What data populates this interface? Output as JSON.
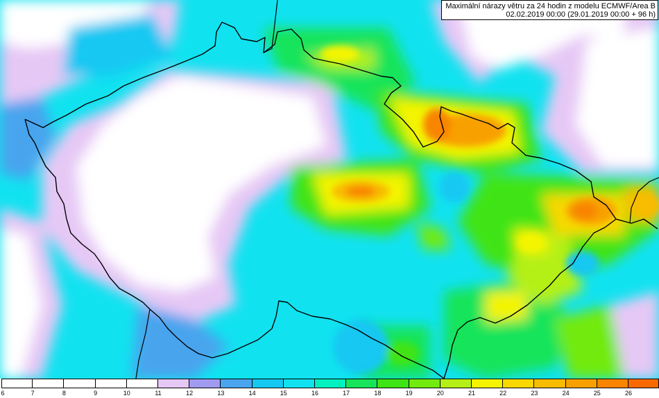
{
  "map": {
    "title_line1": "Maximální nárazy větru za 24 hodin z modelu ECMWF/Area B",
    "title_line2": "02.02.2019 00:00 (29.01.2019 00:00 + 96 h)"
  },
  "legend": {
    "levels": [
      {
        "value": "6",
        "color": "#ffffff"
      },
      {
        "value": "7",
        "color": "#ffffff"
      },
      {
        "value": "8",
        "color": "#ffffff"
      },
      {
        "value": "9",
        "color": "#ffffff"
      },
      {
        "value": "10",
        "color": "#ffffff"
      },
      {
        "value": "11",
        "color": "#e6c8f5"
      },
      {
        "value": "12",
        "color": "#a09bf0"
      },
      {
        "value": "13",
        "color": "#4aa4ee"
      },
      {
        "value": "14",
        "color": "#15c8f2"
      },
      {
        "value": "15",
        "color": "#11e2f0"
      },
      {
        "value": "16",
        "color": "#00f0c0"
      },
      {
        "value": "17",
        "color": "#16e45a"
      },
      {
        "value": "18",
        "color": "#3fe414"
      },
      {
        "value": "19",
        "color": "#72ea10"
      },
      {
        "value": "20",
        "color": "#b4f018"
      },
      {
        "value": "21",
        "color": "#f4f400"
      },
      {
        "value": "22",
        "color": "#f8d800"
      },
      {
        "value": "23",
        "color": "#f8bc00"
      },
      {
        "value": "24",
        "color": "#f8a000"
      },
      {
        "value": "25",
        "color": "#f88400"
      },
      {
        "value": "26",
        "color": "#f86a00"
      }
    ]
  }
}
